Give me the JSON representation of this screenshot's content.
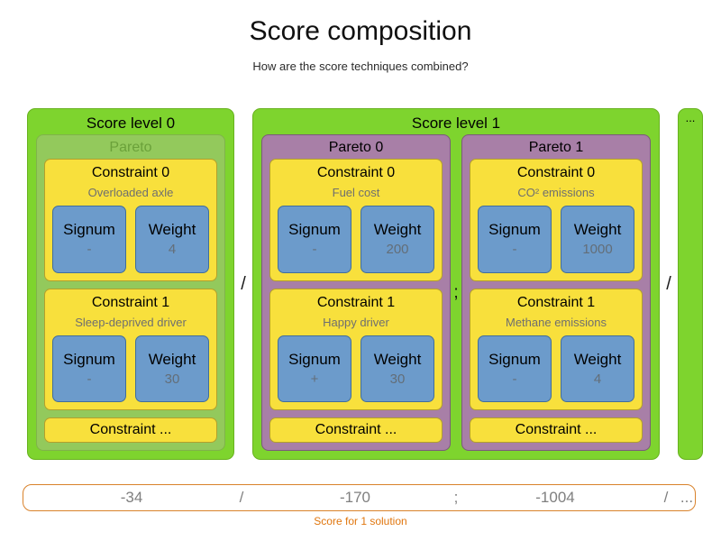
{
  "header": {
    "title": "Score composition",
    "subtitle": "How are the score techniques combined?"
  },
  "labels": {
    "signum": "Signum",
    "weight": "Weight"
  },
  "separators": {
    "level": "/",
    "pareto": ";",
    "trailing": "/"
  },
  "levels": [
    {
      "label": "Score level 0",
      "paretos": [
        {
          "label": "Pareto",
          "constraints": [
            {
              "label": "Constraint 0",
              "description": "Overloaded axle",
              "signum": "-",
              "weight": "4"
            },
            {
              "label": "Constraint 1",
              "description": "Sleep-deprived driver",
              "signum": "-",
              "weight": "30"
            }
          ],
          "more": "Constraint ..."
        }
      ]
    },
    {
      "label": "Score level 1",
      "paretos": [
        {
          "label": "Pareto 0",
          "constraints": [
            {
              "label": "Constraint 0",
              "description": "Fuel cost",
              "signum": "-",
              "weight": "200"
            },
            {
              "label": "Constraint 1",
              "description": "Happy driver",
              "signum": "+",
              "weight": "30"
            }
          ],
          "more": "Constraint ..."
        },
        {
          "label": "Pareto 1",
          "constraints": [
            {
              "label": "Constraint 0",
              "description": "CO² emissions",
              "signum": "-",
              "weight": "1000"
            },
            {
              "label": "Constraint 1",
              "description": "Methane emissions",
              "signum": "-",
              "weight": "4"
            }
          ],
          "more": "Constraint ..."
        }
      ]
    }
  ],
  "ellipsis_bar": "...",
  "score_bar": {
    "segments": [
      "-34",
      "/",
      "-170",
      ";",
      "-1004",
      "/",
      "..."
    ],
    "caption": "Score for 1 solution"
  },
  "colors": {
    "level_green": "#7ed42e",
    "pareto_inner_green": "#93c95c",
    "pareto_purple": "#a87fa7",
    "constraint_yellow": "#f8e03c",
    "signum_weight_blue": "#6c9bcb",
    "score_bar_border_orange": "#d9822b",
    "caption_orange": "#e0760e"
  }
}
